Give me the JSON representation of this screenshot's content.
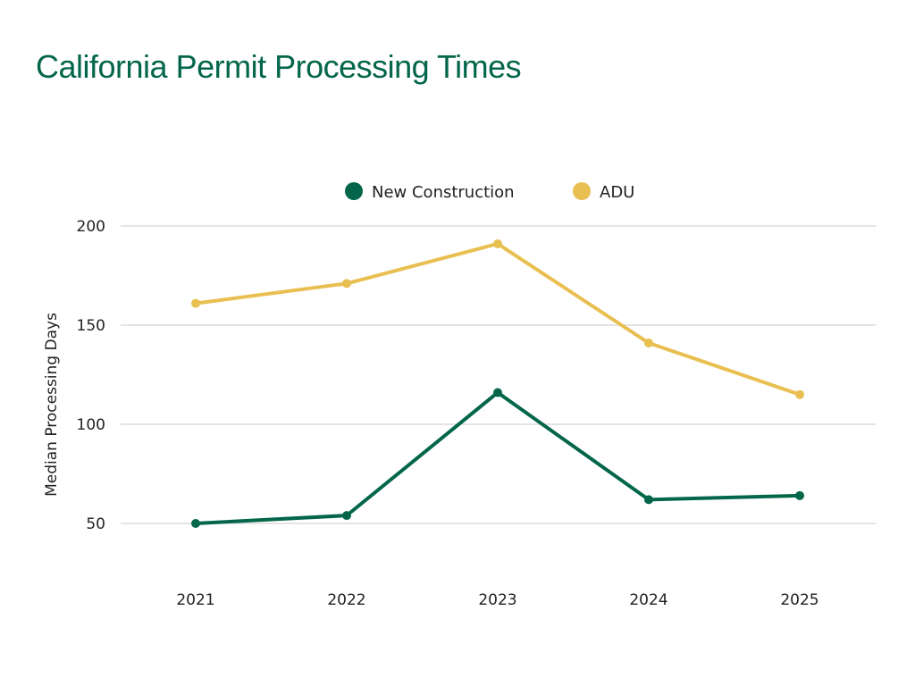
{
  "chart_data": {
    "type": "line",
    "title": "California Permit Processing Times",
    "xlabel": "",
    "ylabel": "Median Processing Days",
    "categories": [
      "2021",
      "2022",
      "2023",
      "2024",
      "2025"
    ],
    "yticks": [
      50,
      100,
      150,
      200
    ],
    "ylim": [
      50,
      200
    ],
    "grid": true,
    "legend_position": "top-center",
    "series": [
      {
        "name": "New Construction",
        "color": "#03664a",
        "values": [
          50,
          54,
          116,
          62,
          64
        ]
      },
      {
        "name": "ADU",
        "color": "#e8bf50",
        "values": [
          161,
          171,
          191,
          141,
          115
        ]
      }
    ]
  }
}
